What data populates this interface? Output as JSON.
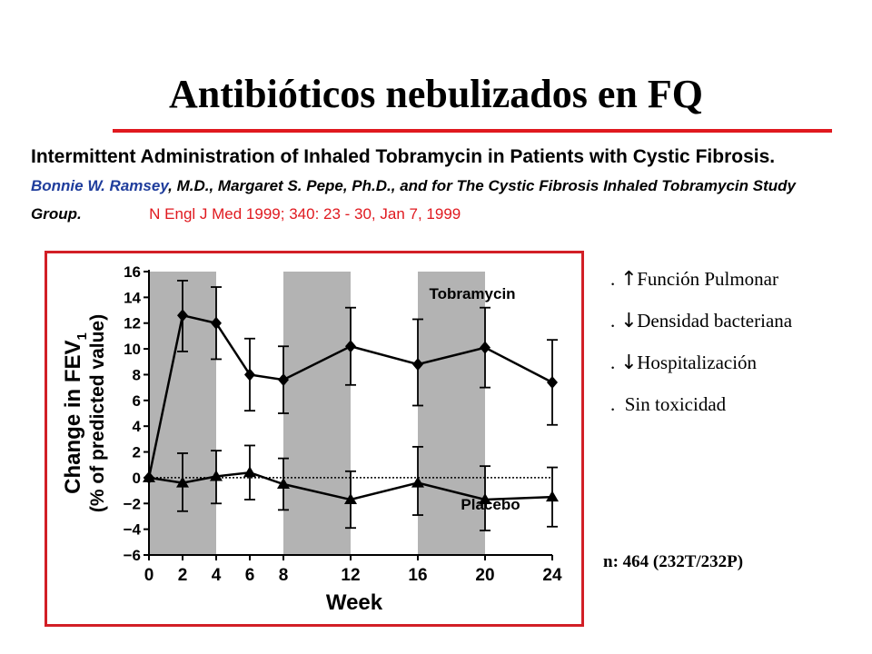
{
  "slide": {
    "title": "Antibióticos nebulizados en FQ",
    "citation": {
      "title": "Intermittent Administration of Inhaled Tobramycin in Patients with Cystic Fibrosis.",
      "first_author": "Bonnie W. Ramsey",
      "authors_rest": ", M.D., Margaret S. Pepe, Ph.D., and for The Cystic Fibrosis Inhaled Tobramycin Study Group.",
      "reference": "N Engl J Med 1999; 340: 23 - 30, Jan 7, 1999"
    },
    "bullets": [
      {
        "prefix": ".",
        "arrow": "up-arrow-icon",
        "glyph": "↑",
        "text": "Función Pulmonar"
      },
      {
        "prefix": ".",
        "arrow": "down-arrow-icon",
        "glyph": "↓",
        "text": "Densidad bacteriana"
      },
      {
        "prefix": ".",
        "arrow": "down-arrow-icon",
        "glyph": "↓",
        "text": "Hospitalización"
      },
      {
        "prefix": ".",
        "arrow": "",
        "glyph": "",
        "text": "Sin toxicidad"
      }
    ],
    "sample_size": "n: 464 (232T/232P)",
    "colors": {
      "accent": "#e0191f",
      "author": "#1f3d9c",
      "shading": "#b3b3b3"
    }
  },
  "chart_data": {
    "type": "line",
    "xlabel": "Week",
    "ylabel": "Change in FEV1 (% of predicted value)",
    "ylabel_line1": "Change in FEV",
    "ylabel_sub": "1",
    "ylabel_line2": "(% of predicted value)",
    "xlim": [
      0,
      24
    ],
    "ylim": [
      -6,
      16
    ],
    "x_ticks": [
      0,
      2,
      4,
      6,
      8,
      12,
      16,
      20,
      24
    ],
    "y_ticks": [
      16,
      14,
      12,
      10,
      8,
      6,
      4,
      2,
      0,
      -2,
      -4,
      -6
    ],
    "y_tick_labels": [
      "16",
      "14",
      "12",
      "10",
      "8",
      "6",
      "4",
      "2",
      "0",
      "−2",
      "−4",
      "−6"
    ],
    "shaded_periods": [
      [
        0,
        4
      ],
      [
        8,
        12
      ],
      [
        16,
        20
      ]
    ],
    "baseline": 0,
    "series": [
      {
        "name": "Tobramycin",
        "marker": "diamond",
        "x": [
          0,
          2,
          4,
          6,
          8,
          12,
          16,
          20,
          24
        ],
        "y": [
          0,
          12.6,
          12.0,
          8.0,
          7.6,
          10.2,
          8.8,
          10.1,
          7.4
        ],
        "err_low": [
          0,
          9.8,
          9.2,
          5.2,
          5.0,
          7.2,
          5.6,
          7.0,
          4.1
        ],
        "err_high": [
          0,
          15.3,
          14.8,
          10.8,
          10.2,
          13.2,
          12.3,
          13.2,
          10.7
        ]
      },
      {
        "name": "Placebo",
        "marker": "triangle",
        "x": [
          0,
          2,
          4,
          6,
          8,
          12,
          16,
          20,
          24
        ],
        "y": [
          0,
          -0.4,
          0.1,
          0.4,
          -0.5,
          -1.7,
          -0.4,
          -1.7,
          -1.5
        ],
        "err_low": [
          0,
          -2.6,
          -2.0,
          -1.7,
          -2.5,
          -3.9,
          -2.9,
          -4.1,
          -3.8
        ],
        "err_high": [
          0,
          1.9,
          2.1,
          2.5,
          1.5,
          0.5,
          2.4,
          0.9,
          0.8
        ]
      }
    ]
  }
}
